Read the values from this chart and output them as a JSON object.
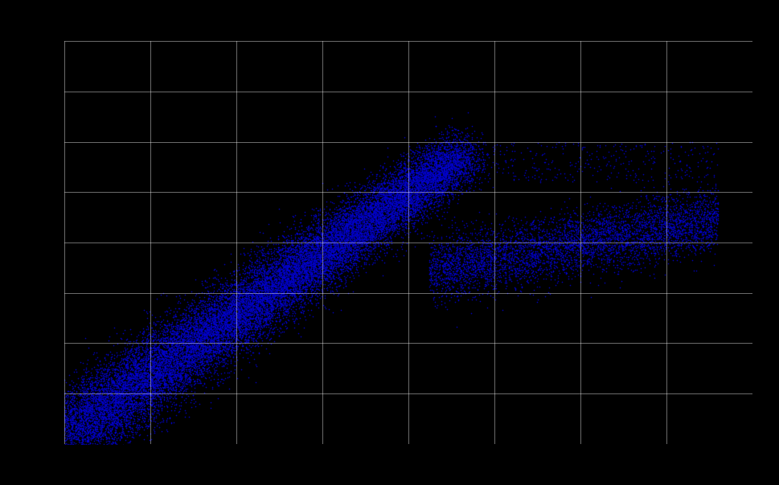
{
  "background_color": "#000000",
  "plot_bg_color": "#000000",
  "dot_color": "#0000CC",
  "dot_size": 1.5,
  "dot_alpha": 0.8,
  "grid_color": "#ffffff",
  "grid_alpha": 0.6,
  "grid_linewidth": 0.5,
  "n_xticks": 9,
  "n_yticks": 9,
  "figsize": [
    9.7,
    6.04
  ],
  "dpi": 100,
  "seed": 42
}
